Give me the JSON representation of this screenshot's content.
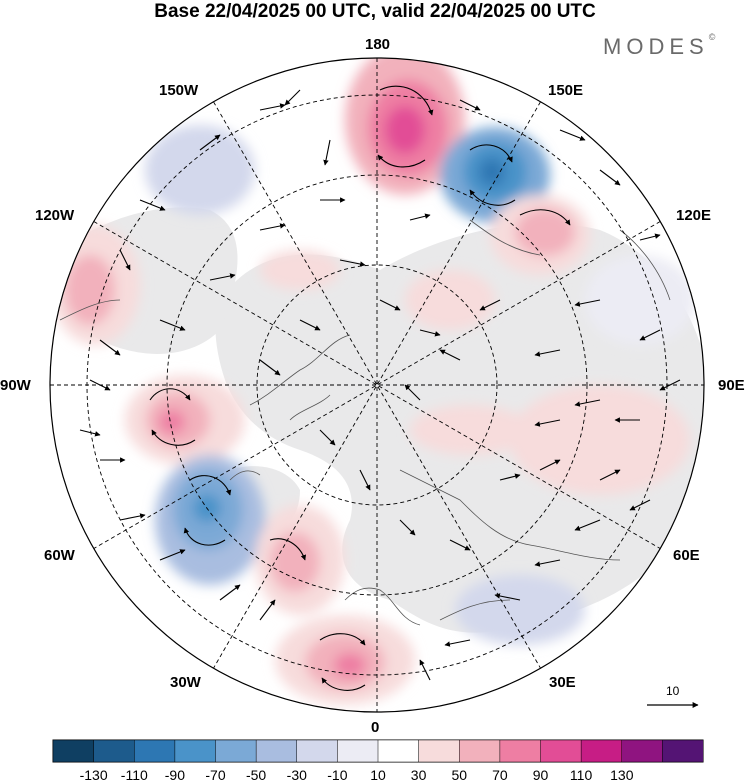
{
  "header": {
    "title": "Base 22/04/2025 00 UTC, valid 22/04/2025 00 UTC",
    "brand": "MODES",
    "brand_mark": "©"
  },
  "longitude_labels": {
    "lon_180": "180",
    "lon_150E": "150E",
    "lon_120E": "120E",
    "lon_90E": "90E",
    "lon_60E": "60E",
    "lon_30E": "30E",
    "lon_0": "0",
    "lon_30W": "30W",
    "lon_60W": "60W",
    "lon_90W": "90W",
    "lon_120W": "120W",
    "lon_150W": "150W"
  },
  "map": {
    "projection": "north-polar-stereographic",
    "graticule": "dashed",
    "ocean_color": "#ffffff",
    "coastline_color": "#555555"
  },
  "colorbar": {
    "ticks": [
      "-130",
      "-110",
      "-90",
      "-70",
      "-50",
      "-30",
      "-10",
      "10",
      "30",
      "50",
      "70",
      "90",
      "110",
      "130"
    ],
    "colors": [
      "#0f3f62",
      "#1d5b8c",
      "#2d77b3",
      "#4a93c9",
      "#7ba9d6",
      "#a9bde0",
      "#d3d8ec",
      "#ececf4",
      "#ffffff",
      "#f7dcdc",
      "#f2b1bc",
      "#ee7ea3",
      "#e24d96",
      "#c71d85",
      "#8f1480",
      "#541474"
    ]
  },
  "vector_scale": {
    "label": "10"
  }
}
